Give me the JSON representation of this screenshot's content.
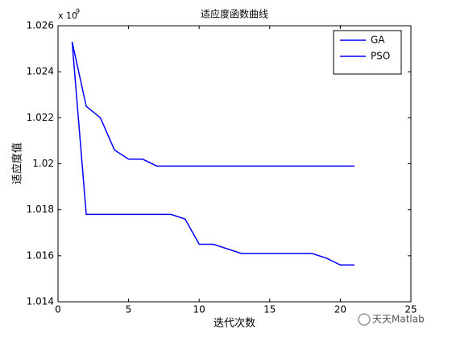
{
  "chart_data": {
    "type": "line",
    "title": "适应度函数曲线",
    "x_label": "迭代次数",
    "y_label": "适应度值",
    "y_multiplier": "x 10",
    "y_exponent": "9",
    "x": [
      1,
      2,
      3,
      4,
      5,
      6,
      7,
      8,
      9,
      10,
      11,
      12,
      13,
      14,
      15,
      16,
      17,
      18,
      19,
      20,
      21
    ],
    "series": [
      {
        "name": "GA",
        "color": "#0000ff",
        "values": [
          1.0253,
          1.0225,
          1.022,
          1.0206,
          1.0202,
          1.0202,
          1.0199,
          1.0199,
          1.0199,
          1.0199,
          1.0199,
          1.0199,
          1.0199,
          1.0199,
          1.0199,
          1.0199,
          1.0199,
          1.0199,
          1.0199,
          1.0199,
          1.0199
        ]
      },
      {
        "name": "PSO",
        "color": "#0000ff",
        "values": [
          1.0253,
          1.0178,
          1.0178,
          1.0178,
          1.0178,
          1.0178,
          1.0178,
          1.0178,
          1.0176,
          1.0165,
          1.0165,
          1.0163,
          1.0161,
          1.0161,
          1.0161,
          1.0161,
          1.0161,
          1.0161,
          1.0159,
          1.0156,
          1.0156
        ]
      }
    ],
    "xlim": [
      0,
      25
    ],
    "xticks": [
      0,
      5,
      10,
      15,
      20,
      25
    ],
    "ylim": [
      1.014,
      1.026
    ],
    "yticks": [
      1.014,
      1.016,
      1.018,
      1.02,
      1.022,
      1.024,
      1.026
    ],
    "legend": "northeast",
    "watermark": "天天Matlab"
  }
}
